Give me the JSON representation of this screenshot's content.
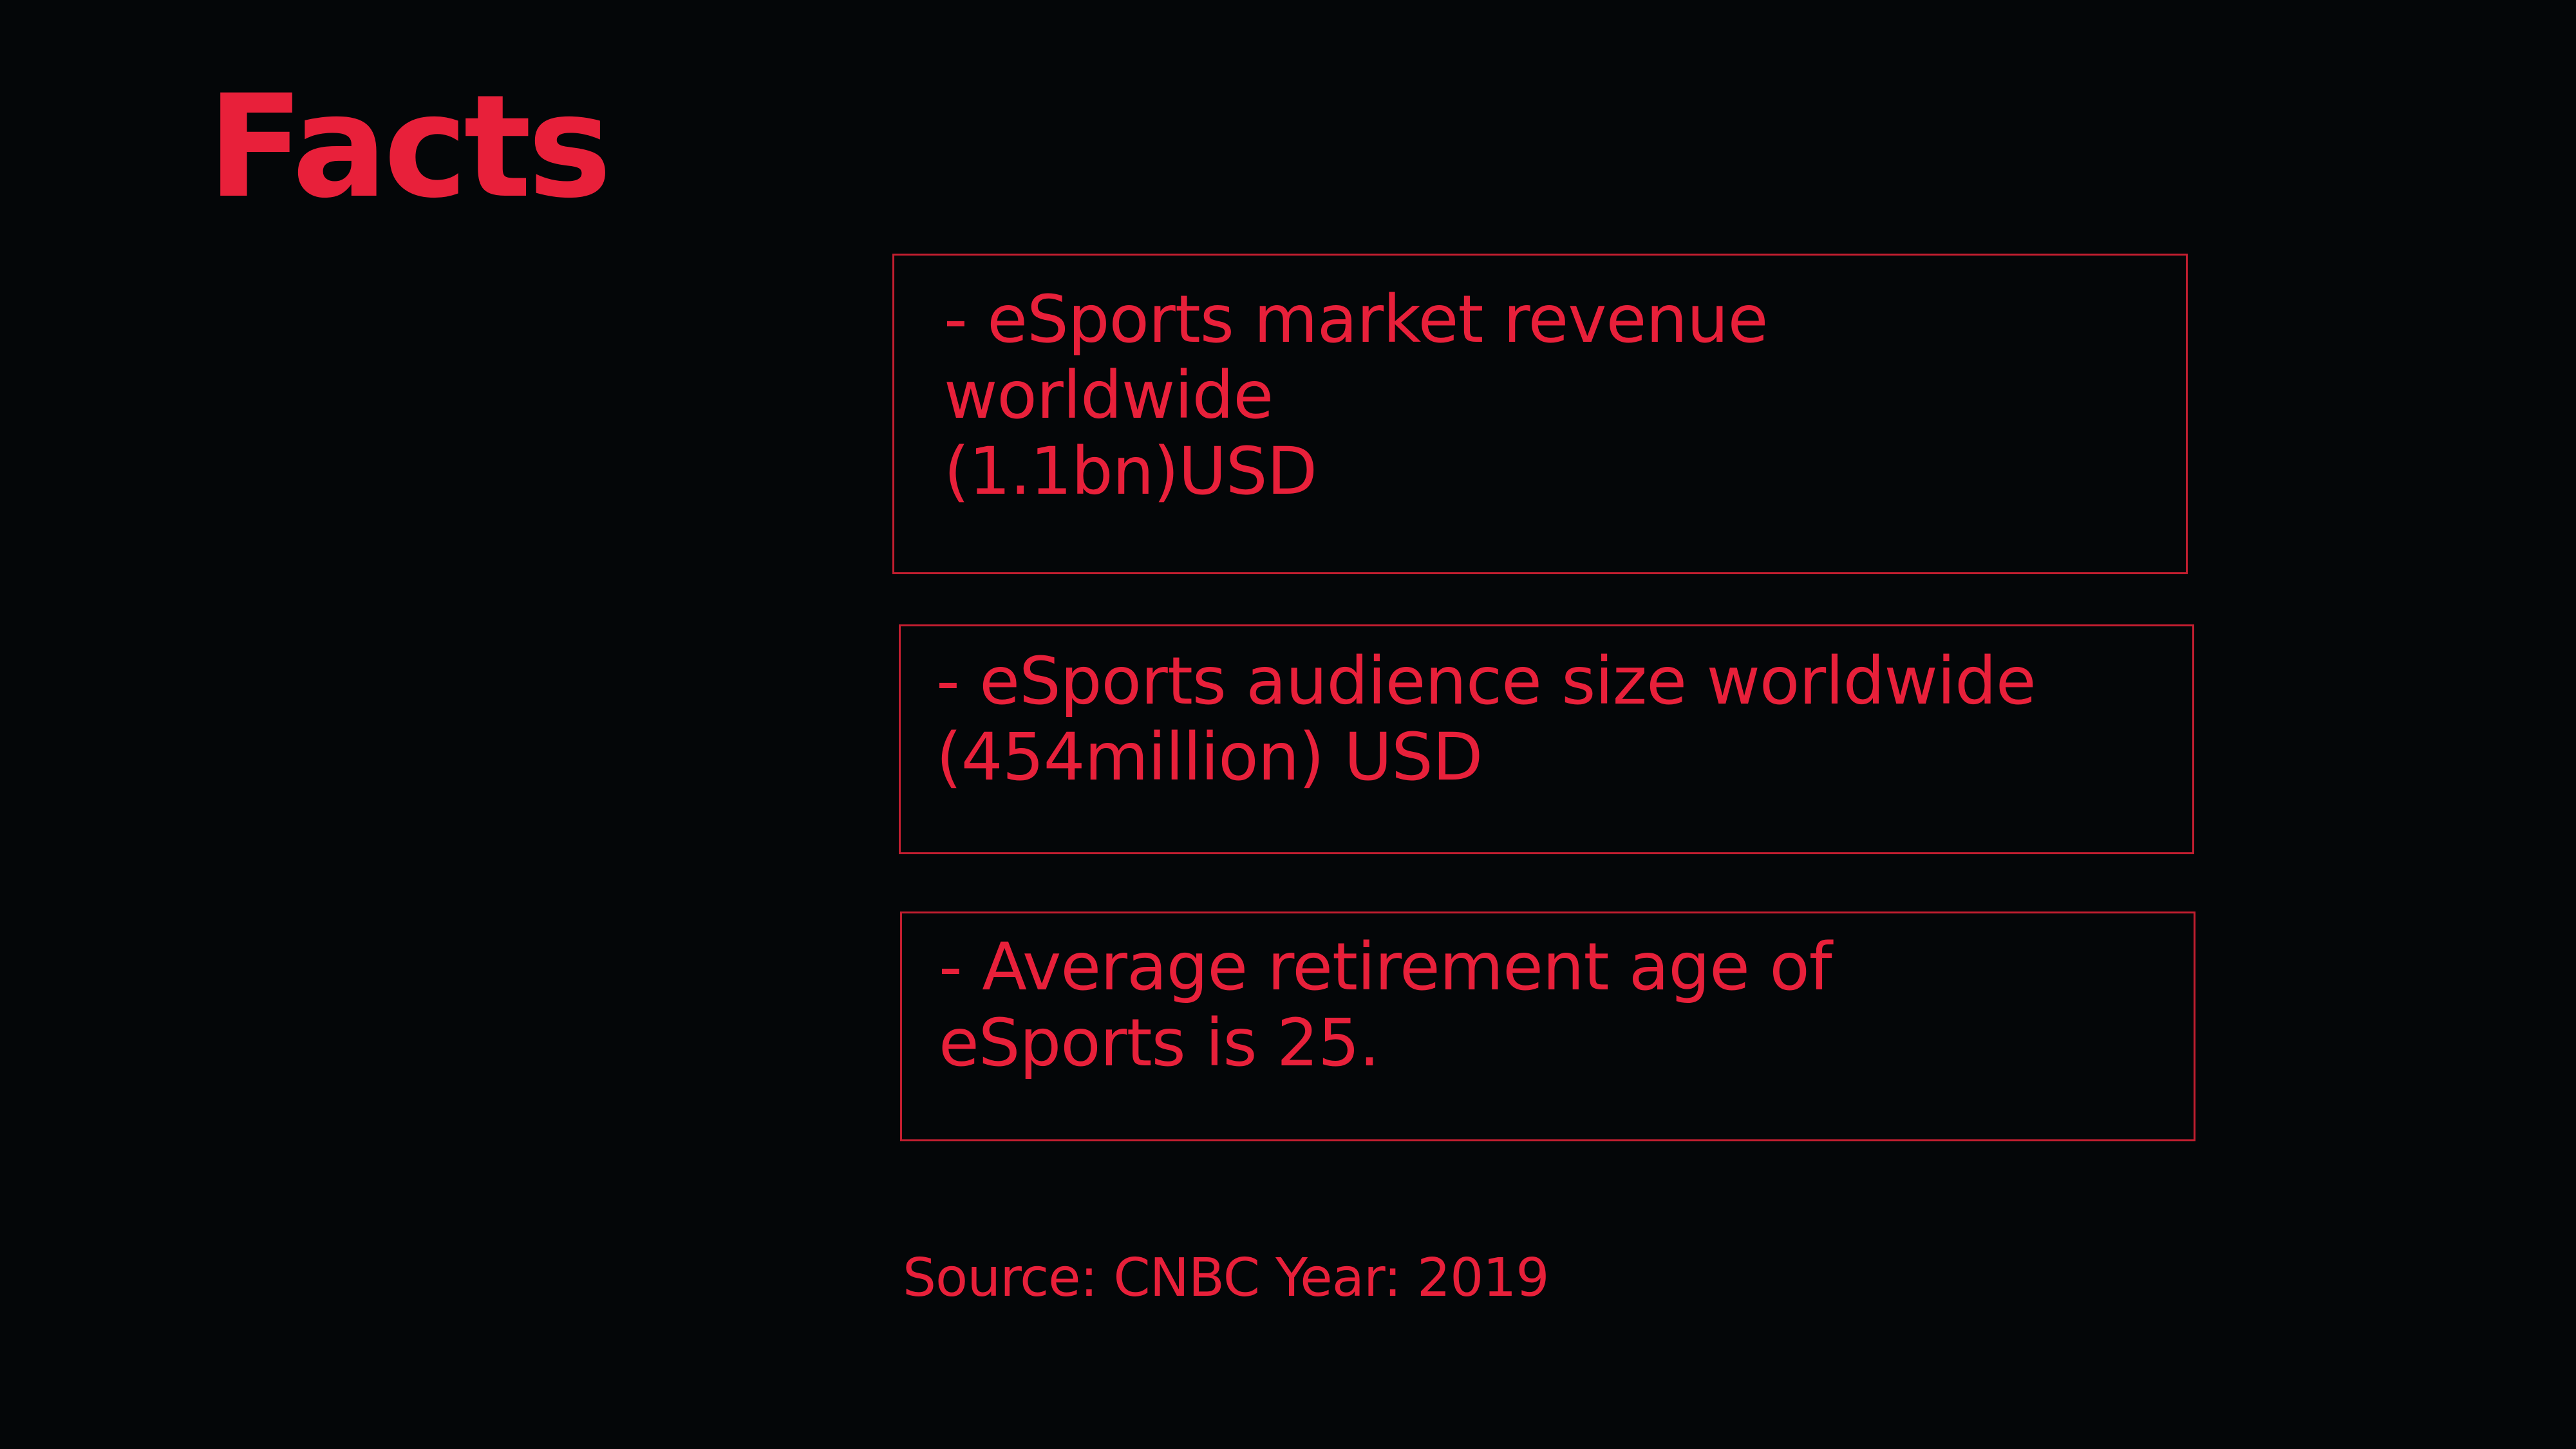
{
  "slide": {
    "title": "Facts",
    "facts": [
      {
        "lines": [
          "- eSports market revenue",
          "worldwide",
          "(1.1bn)USD"
        ]
      },
      {
        "lines": [
          "- eSports audience size worldwide",
          "(454million) USD"
        ]
      },
      {
        "lines": [
          "- Average retirement age of",
          "eSports is 25."
        ]
      }
    ],
    "source": "Source: CNBC Year: 2019"
  },
  "colors": {
    "background": "#040608",
    "accent": "#e8203a",
    "box_border": "#c41e30"
  }
}
